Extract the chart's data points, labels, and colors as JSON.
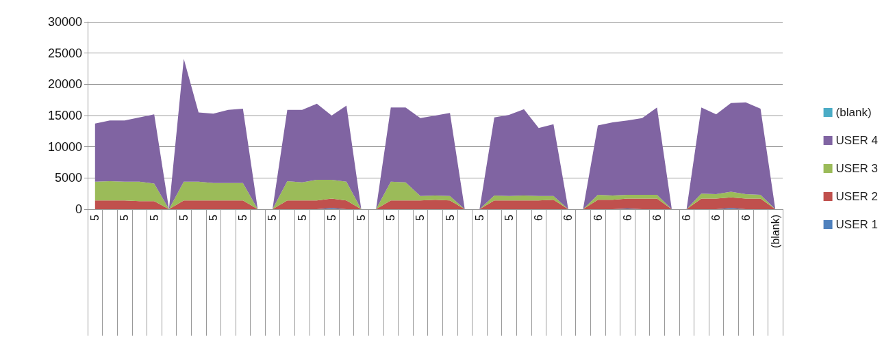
{
  "chart_data": {
    "type": "area",
    "stacked": true,
    "categories": [
      "5",
      null,
      "5",
      null,
      "5",
      null,
      "5",
      null,
      "5",
      null,
      "5",
      null,
      "5",
      null,
      "5",
      null,
      "5",
      null,
      "5",
      null,
      "5",
      null,
      "5",
      null,
      "5",
      null,
      "5",
      null,
      "5",
      null,
      "6",
      null,
      "6",
      null,
      "6",
      null,
      "6",
      null,
      "6",
      null,
      "6",
      null,
      "6",
      null,
      "6",
      null,
      "(blank)"
    ],
    "series": [
      {
        "name": "USER 1",
        "color": "#4f81bd",
        "values": [
          0,
          0,
          0,
          0,
          0,
          0,
          0,
          0,
          0,
          0,
          0,
          0,
          0,
          0,
          0,
          0,
          200,
          0,
          0,
          0,
          0,
          0,
          0,
          0,
          0,
          0,
          0,
          0,
          0,
          0,
          0,
          0,
          0,
          0,
          0,
          0,
          100,
          0,
          0,
          0,
          0,
          0,
          0,
          200,
          0,
          0,
          0
        ]
      },
      {
        "name": "USER 2",
        "color": "#c0504d",
        "values": [
          1400,
          1400,
          1400,
          1300,
          1300,
          0,
          1400,
          1400,
          1400,
          1400,
          1400,
          0,
          0,
          1400,
          1400,
          1400,
          1500,
          1400,
          0,
          0,
          1400,
          1400,
          1400,
          1500,
          1400,
          0,
          0,
          1400,
          1400,
          1400,
          1400,
          1500,
          0,
          0,
          1500,
          1500,
          1600,
          1700,
          1700,
          0,
          0,
          1700,
          1700,
          1700,
          1700,
          1700,
          0
        ]
      },
      {
        "name": "USER 3",
        "color": "#9bbb59",
        "values": [
          3000,
          3100,
          3000,
          3100,
          2800,
          0,
          3000,
          3000,
          2800,
          2800,
          2800,
          0,
          0,
          3100,
          2900,
          3300,
          3000,
          3000,
          0,
          0,
          3000,
          2900,
          700,
          700,
          700,
          0,
          0,
          800,
          700,
          800,
          700,
          600,
          0,
          0,
          800,
          700,
          600,
          600,
          600,
          0,
          0,
          800,
          700,
          900,
          700,
          600,
          0
        ]
      },
      {
        "name": "USER 4",
        "color": "#8064a2",
        "values": [
          9300,
          9700,
          9800,
          10300,
          11100,
          0,
          19700,
          11100,
          11100,
          11700,
          11900,
          0,
          0,
          11400,
          11600,
          12200,
          10300,
          12200,
          0,
          0,
          11900,
          12000,
          12500,
          12800,
          13300,
          0,
          0,
          12500,
          13000,
          13800,
          10900,
          11500,
          0,
          0,
          11100,
          11700,
          11900,
          12300,
          14000,
          0,
          0,
          13800,
          12800,
          14200,
          14700,
          13800,
          0
        ]
      },
      {
        "name": "(blank)",
        "color": "#4bacc6",
        "values": [
          null,
          null,
          null,
          null,
          null,
          null,
          null,
          null,
          null,
          null,
          null,
          null,
          null,
          null,
          null,
          null,
          null,
          null,
          null,
          null,
          null,
          null,
          null,
          null,
          null,
          null,
          null,
          null,
          null,
          null,
          null,
          null,
          null,
          null,
          null,
          null,
          null,
          null,
          null,
          null,
          null,
          null,
          null,
          null,
          null,
          null,
          null
        ]
      }
    ],
    "ylim": [
      0,
      30000
    ],
    "yticks": [
      0,
      5000,
      10000,
      15000,
      20000,
      25000,
      30000
    ],
    "grid": "y",
    "legend": "right"
  }
}
